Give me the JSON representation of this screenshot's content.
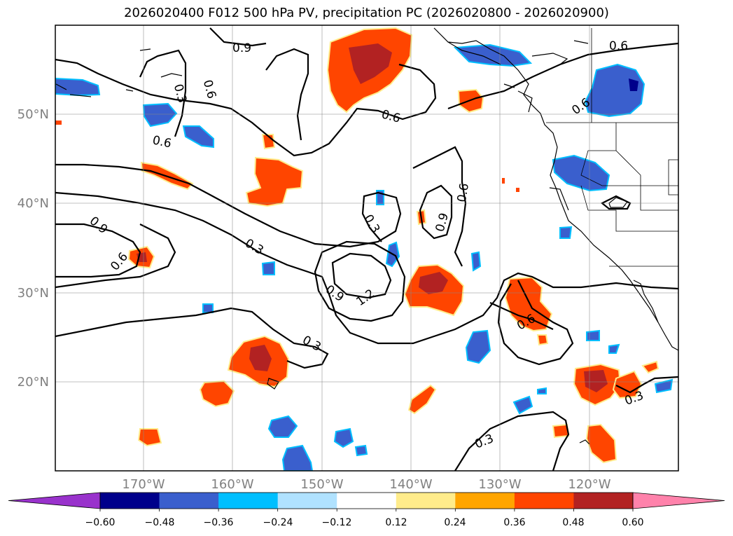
{
  "title": "2026020400 F012 500 hPa PV, precipitation PC (2026020800 - 2026020900)",
  "map": {
    "lon_labels": [
      "170°W",
      "160°W",
      "150°W",
      "140°W",
      "130°W",
      "120°W"
    ],
    "lat_labels": [
      "50°N",
      "40°N",
      "30°N",
      "20°N"
    ],
    "contour_labels": [
      "0.9",
      "0.3",
      "0.6",
      "0.6",
      "0.6",
      "0.6",
      "0.6",
      "0.9",
      "0.6",
      "0.3",
      "0.3",
      "0.6",
      "0.9",
      "0.9",
      "1.2",
      "0.3",
      "0.6",
      "0.3",
      "0.3"
    ]
  },
  "colorbar": {
    "tick_labels": [
      "−0.60",
      "−0.48",
      "−0.36",
      "−0.24",
      "−0.12",
      "0.12",
      "0.24",
      "0.36",
      "0.48",
      "0.60"
    ],
    "colors": [
      "#9932cc",
      "#00008b",
      "#3a5fcd",
      "#00bfff",
      "#b0e2ff",
      "#ffffff",
      "#ffec8b",
      "#ffa500",
      "#ff4500",
      "#b22222",
      "#ff82ab"
    ]
  }
}
